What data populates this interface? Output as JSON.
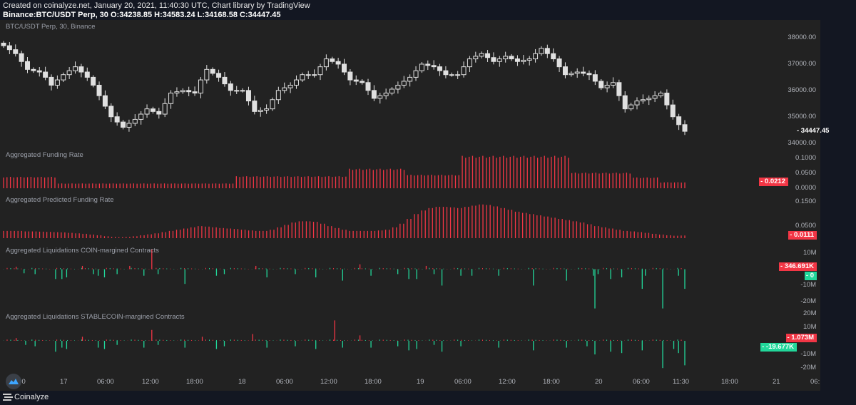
{
  "header": {
    "created": "Created on coinalyze.net, January 20, 2021, 11:40:30 UTC, Chart library by TradingView",
    "ohlc": "Binance:BTC/USDT Perp, 30 O:34238.85 H:34583.24 L:34168.58 C:34447.45"
  },
  "footer": {
    "brand": "Coinalyze"
  },
  "colors": {
    "up": "#e0e0e0",
    "down": "#e0e0e0",
    "red": "#f23645",
    "green": "#22d79a",
    "bg": "#222222"
  },
  "chart_data": [
    {
      "type": "candlestick",
      "title": "BTC/USDT Perp, 30, Binance",
      "ylim": [
        33800,
        38300
      ],
      "ticks": [
        "38000.00",
        "37000.00",
        "36000.00",
        "35000.00",
        "34000.00"
      ],
      "tick_values": [
        38000,
        37000,
        36000,
        35000,
        34000
      ],
      "last": "34447.45",
      "last_value": 34447.45,
      "closes": [
        37700,
        37550,
        37400,
        37100,
        36800,
        36750,
        36700,
        36500,
        36200,
        36400,
        36600,
        36750,
        36900,
        36700,
        36500,
        36200,
        35800,
        35400,
        35000,
        34800,
        34600,
        34750,
        34900,
        35100,
        35300,
        35200,
        35100,
        35500,
        35900,
        35950,
        36000,
        35950,
        35900,
        36400,
        36800,
        36650,
        36500,
        36250,
        36000,
        36000,
        36000,
        35600,
        35200,
        35250,
        35300,
        35650,
        36000,
        36100,
        36200,
        36400,
        36600,
        36600,
        36600,
        36900,
        37200,
        37100,
        37000,
        36700,
        36400,
        36350,
        36300,
        36000,
        35700,
        35800,
        35900,
        36050,
        36200,
        36350,
        36500,
        36750,
        37000,
        36950,
        36900,
        36750,
        36600,
        36600,
        36600,
        36900,
        37200,
        37300,
        37400,
        37250,
        37100,
        37200,
        37300,
        37200,
        37100,
        37150,
        37200,
        37400,
        37600,
        37400,
        37200,
        36900,
        36600,
        36650,
        36700,
        36650,
        36600,
        36350,
        36100,
        36200,
        36300,
        35800,
        35300,
        35450,
        35600,
        35650,
        35700,
        35800,
        35900,
        35450,
        35000,
        34700,
        34447
      ]
    },
    {
      "type": "bar",
      "title": "Aggregated Funding Rate",
      "ylim": [
        0,
        0.12
      ],
      "ticks": [
        "0.1000",
        "0.0500",
        "0.0000"
      ],
      "tick_values": [
        0.1,
        0.05,
        0
      ],
      "last": "0.0212",
      "last_value": 0.0212,
      "segments": [
        [
          16,
          0.038
        ],
        [
          52,
          0.016
        ],
        [
          33,
          0.04
        ],
        [
          17,
          0.065
        ],
        [
          16,
          0.045
        ],
        [
          32,
          0.108
        ],
        [
          18,
          0.052
        ],
        [
          8,
          0.036
        ],
        [
          8,
          0.02
        ]
      ]
    },
    {
      "type": "bar",
      "title": "Aggregated Predicted Funding Rate",
      "ylim": [
        0,
        0.16
      ],
      "ticks": [
        "0.1500",
        "0.0500"
      ],
      "tick_values": [
        0.15,
        0.05
      ],
      "last": "0.0111",
      "last_value": 0.0111,
      "values": [
        0.03,
        0.03,
        0.03,
        0.028,
        0.028,
        0.027,
        0.026,
        0.025,
        0.024,
        0.022,
        0.02,
        0.018,
        0.015,
        0.012,
        0.008,
        0.005,
        0.004,
        0.005,
        0.008,
        0.012,
        0.016,
        0.02,
        0.025,
        0.03,
        0.035,
        0.04,
        0.045,
        0.05,
        0.048,
        0.045,
        0.042,
        0.04,
        0.038,
        0.035,
        0.032,
        0.03,
        0.03,
        0.035,
        0.045,
        0.055,
        0.065,
        0.07,
        0.07,
        0.068,
        0.06,
        0.05,
        0.042,
        0.035,
        0.03,
        0.03,
        0.03,
        0.03,
        0.032,
        0.035,
        0.045,
        0.06,
        0.08,
        0.1,
        0.115,
        0.125,
        0.13,
        0.13,
        0.128,
        0.125,
        0.13,
        0.135,
        0.14,
        0.138,
        0.132,
        0.125,
        0.118,
        0.11,
        0.105,
        0.1,
        0.095,
        0.09,
        0.085,
        0.08,
        0.075,
        0.07,
        0.065,
        0.058,
        0.05,
        0.045,
        0.04,
        0.035,
        0.03,
        0.028,
        0.025,
        0.022,
        0.018,
        0.015,
        0.012,
        0.01,
        0.011
      ]
    },
    {
      "type": "bar",
      "title": "Aggregated Liquidations COIN-margined Contracts",
      "ylim": [
        -22000000,
        12000000
      ],
      "ticks": [
        "10M",
        "-10M",
        "-20M"
      ],
      "tick_values": [
        10000000,
        -10000000,
        -20000000
      ],
      "last_long": "346.691K",
      "last_short": "0",
      "spikes": [
        [
          8,
          1.5
        ],
        [
          13,
          -2.5
        ],
        [
          20,
          -3
        ],
        [
          33,
          -6
        ],
        [
          37,
          -6
        ],
        [
          40,
          -5
        ],
        [
          50,
          2
        ],
        [
          57,
          -3
        ],
        [
          60,
          -4
        ],
        [
          64,
          -5
        ],
        [
          72,
          -3
        ],
        [
          80,
          2
        ],
        [
          89,
          -4
        ],
        [
          94,
          12
        ],
        [
          98,
          -3
        ],
        [
          115,
          -9
        ],
        [
          135,
          -4
        ],
        [
          140,
          -3
        ],
        [
          160,
          2
        ],
        [
          167,
          -5
        ],
        [
          185,
          -3
        ],
        [
          198,
          -5
        ],
        [
          215,
          -7
        ],
        [
          226,
          3
        ],
        [
          233,
          -4
        ],
        [
          250,
          -3
        ],
        [
          257,
          -6
        ],
        [
          262,
          -6
        ],
        [
          268,
          2
        ],
        [
          273,
          -3
        ],
        [
          278,
          -10
        ],
        [
          290,
          -4
        ],
        [
          297,
          -4
        ],
        [
          314,
          -4
        ],
        [
          336,
          -10
        ],
        [
          357,
          -7
        ],
        [
          374,
          -4
        ],
        [
          375,
          -24
        ],
        [
          377,
          -3
        ],
        [
          385,
          -6
        ],
        [
          392,
          -5
        ],
        [
          405,
          -12
        ],
        [
          407,
          -4
        ],
        [
          418,
          -24
        ],
        [
          428,
          -4
        ],
        [
          432,
          -12
        ]
      ]
    },
    {
      "type": "bar",
      "title": "Aggregated Liquidations STABLECOIN-margined Contracts",
      "ylim": [
        -22000000,
        22000000
      ],
      "ticks": [
        "20M",
        "10M",
        "-10M",
        "-20M"
      ],
      "tick_values": [
        20000000,
        10000000,
        -10000000,
        -20000000
      ],
      "last_long": "1.073M",
      "last_short": "-19.677K",
      "spikes": [
        [
          8,
          2
        ],
        [
          14,
          -3
        ],
        [
          20,
          -4
        ],
        [
          33,
          -8
        ],
        [
          37,
          -5
        ],
        [
          40,
          -6
        ],
        [
          50,
          3
        ],
        [
          60,
          -5
        ],
        [
          64,
          -6
        ],
        [
          72,
          -3
        ],
        [
          89,
          -5
        ],
        [
          94,
          8
        ],
        [
          98,
          -3
        ],
        [
          115,
          -5
        ],
        [
          126,
          3
        ],
        [
          135,
          -6
        ],
        [
          140,
          -4
        ],
        [
          158,
          5
        ],
        [
          167,
          -5
        ],
        [
          185,
          -4
        ],
        [
          198,
          -6
        ],
        [
          210,
          15
        ],
        [
          215,
          -5
        ],
        [
          226,
          4
        ],
        [
          233,
          -5
        ],
        [
          250,
          -4
        ],
        [
          257,
          -7
        ],
        [
          262,
          -6
        ],
        [
          273,
          -3
        ],
        [
          278,
          -8
        ],
        [
          290,
          -4
        ],
        [
          314,
          -5
        ],
        [
          336,
          -7
        ],
        [
          357,
          -5
        ],
        [
          370,
          -4
        ],
        [
          375,
          -10
        ],
        [
          385,
          -8
        ],
        [
          392,
          -9
        ],
        [
          405,
          -7
        ],
        [
          418,
          -20
        ],
        [
          425,
          -6
        ],
        [
          428,
          -9
        ],
        [
          432,
          -18
        ]
      ]
    }
  ],
  "time_axis": [
    "18:00",
    "17",
    "06:00",
    "12:00",
    "18:00",
    "18",
    "06:00",
    "12:00",
    "18:00",
    "19",
    "06:00",
    "12:00",
    "18:00",
    "20",
    "06:00",
    "11:30",
    "18:00",
    "21",
    "06:"
  ]
}
